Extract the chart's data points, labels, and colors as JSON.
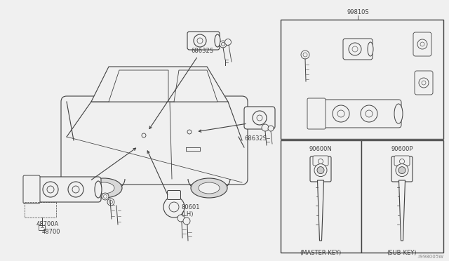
{
  "bg_color": "#f5f5f5",
  "fig_width": 6.4,
  "fig_height": 3.72,
  "dpi": 100,
  "labels": {
    "68632S_top": "68632S",
    "68632S_right": "68632S",
    "48700A": "48700A",
    "48700": "48700",
    "80601_LH": "80601\n(LH)",
    "99810S": "99810S",
    "90600N": "90600N",
    "90600P": "90600P",
    "master_key": "(MASTER-KEY)",
    "sub_key": "(SUB-KEY)",
    "watermark": ".I998005W"
  },
  "colors": {
    "line": "#404040",
    "text": "#404040",
    "bg": "#f0f0f0",
    "box_edge": "#404040"
  },
  "font_sizes": {
    "label": 6,
    "watermark": 5
  }
}
